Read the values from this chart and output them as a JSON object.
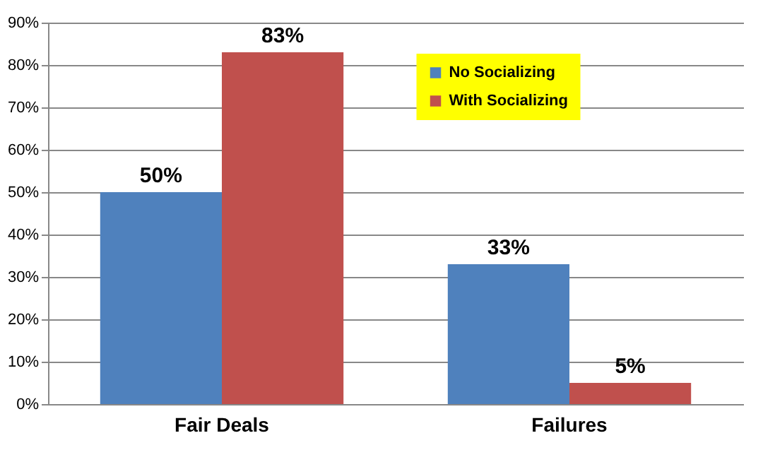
{
  "chart_data": {
    "type": "bar",
    "categories": [
      "Fair Deals",
      "Failures"
    ],
    "series": [
      {
        "name": "No Socializing",
        "color": "#4f81bd",
        "values": [
          50,
          33
        ],
        "value_labels": [
          "50%",
          "33%"
        ]
      },
      {
        "name": "With Socializing",
        "color": "#c0504d",
        "values": [
          83,
          5
        ],
        "value_labels": [
          "83%",
          "5%"
        ]
      }
    ],
    "ylim": [
      0,
      90
    ],
    "yticks": [
      {
        "value": 0,
        "label": "0%"
      },
      {
        "value": 10,
        "label": "10%"
      },
      {
        "value": 20,
        "label": "20%"
      },
      {
        "value": 30,
        "label": "30%"
      },
      {
        "value": 40,
        "label": "40%"
      },
      {
        "value": 50,
        "label": "50%"
      },
      {
        "value": 60,
        "label": "60%"
      },
      {
        "value": 70,
        "label": "70%"
      },
      {
        "value": 80,
        "label": "80%"
      },
      {
        "value": 90,
        "label": "90%"
      }
    ],
    "grid": "y",
    "legend": "top right"
  }
}
